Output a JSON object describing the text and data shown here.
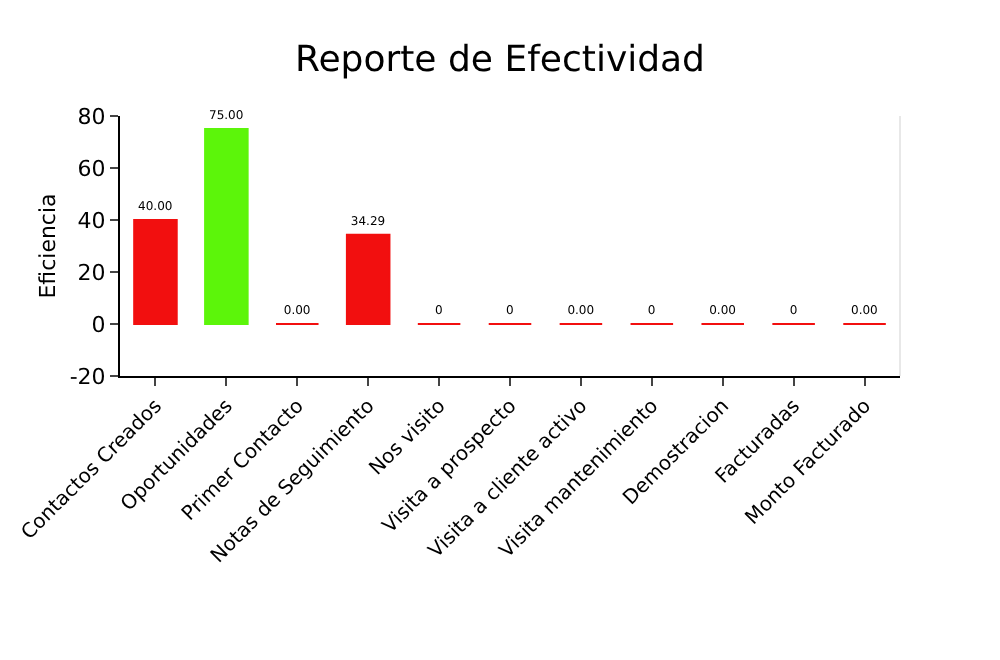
{
  "chart_data": {
    "type": "bar",
    "title": "Reporte de Efectividad",
    "ylabel": "Eficiencia",
    "categories": [
      "Contactos Creados",
      "Oportunidades",
      "Primer Contacto",
      "Notas de Seguimiento",
      "Nos visito",
      "Visita a prospecto",
      "Visita a cliente activo",
      "Visita mantenimiento",
      "Demostracion",
      "Facturadas",
      "Monto Facturado"
    ],
    "values": [
      40,
      75,
      0,
      34.29,
      0,
      0,
      0,
      0,
      0,
      0,
      0
    ],
    "colors": [
      "#f20f0f",
      "#5cf50a",
      "#f20f0f",
      "#f20f0f",
      "#f20f0f",
      "#f20f0f",
      "#f20f0f",
      "#f20f0f",
      "#f20f0f",
      "#f20f0f",
      "#f20f0f"
    ],
    "value_labels": [
      "40.00",
      "75.00",
      "0.00",
      "34.29",
      "0",
      "0",
      "0.00",
      "0",
      "0.00",
      "0",
      "0.00"
    ],
    "ylim": [
      -20,
      80
    ],
    "yticks": [
      -20,
      0,
      20,
      40,
      60,
      80
    ],
    "grid": false
  }
}
